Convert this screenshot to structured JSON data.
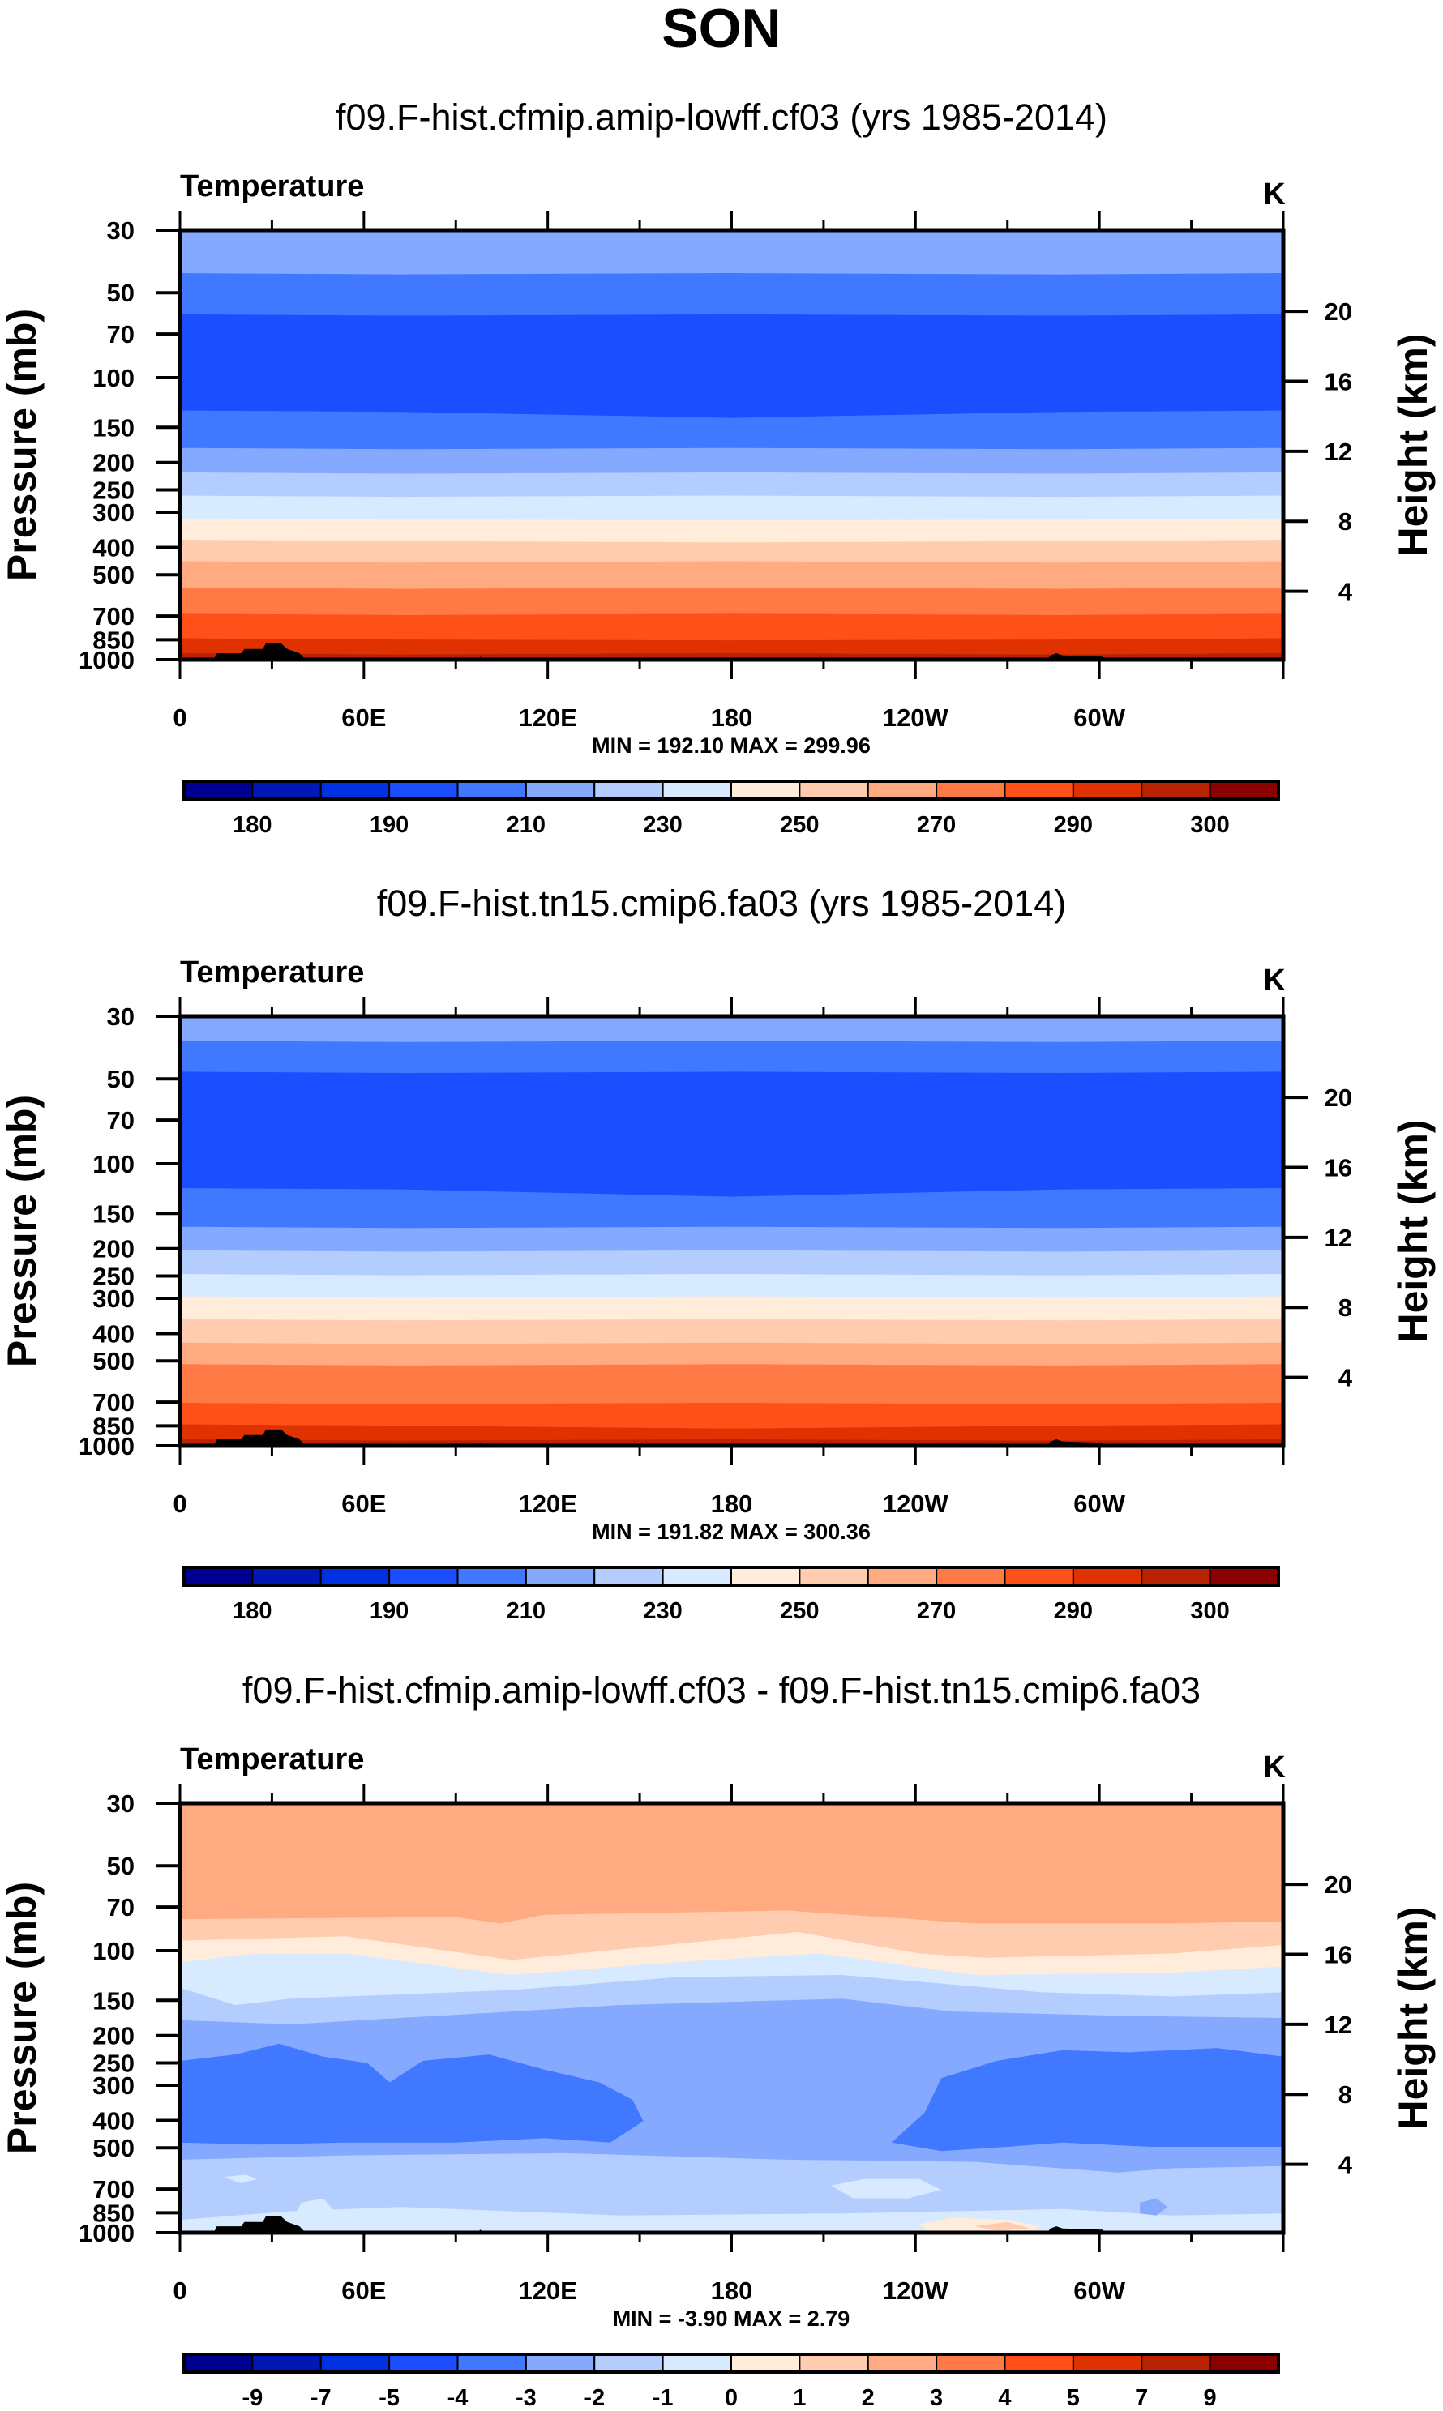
{
  "title": "SON",
  "chart_data": {
    "type": "heatmap",
    "subtype": "filled-contour cross-section",
    "title": "SON",
    "xlabel": "",
    "ylabel_left": "Pressure (mb)",
    "ylabel_right": "Height (km)",
    "x_ticks": [
      "0",
      "60E",
      "120E",
      "180",
      "120W",
      "60W"
    ],
    "x_tick_values_deg": [
      0,
      60,
      120,
      180,
      240,
      300
    ],
    "xlim_deg": [
      0,
      360
    ],
    "y_ticks_left": [
      "30",
      "50",
      "70",
      "100",
      "150",
      "200",
      "250",
      "300",
      "400",
      "500",
      "700",
      "850",
      "1000"
    ],
    "y_tick_values_mb": [
      30,
      50,
      70,
      100,
      150,
      200,
      250,
      300,
      400,
      500,
      700,
      850,
      1000
    ],
    "ylim_mb": [
      1000,
      30
    ],
    "y_scale": "log",
    "y_ticks_right": [
      "20",
      "16",
      "12",
      "8",
      "4"
    ],
    "y_tick_values_km": [
      20,
      16,
      12,
      8,
      4
    ],
    "palette": [
      "#000090",
      "#0019B4",
      "#0031E0",
      "#1A4EFF",
      "#4079FF",
      "#85A9FF",
      "#B4CDFF",
      "#D8EAFF",
      "#FFECDA",
      "#FFCCB0",
      "#FFAA80",
      "#FF7A45",
      "#FF501A",
      "#E03200",
      "#B92200",
      "#8B0000"
    ],
    "panels": [
      {
        "subtitle": "f09.F-hist.cfmip.amip-lowff.cf03 (yrs 1985-2014)",
        "variable": "Temperature",
        "units": "K",
        "min_max": "MIN = 192.10   MAX = 299.96",
        "min": 192.1,
        "max": 299.96,
        "colorbar_labels": [
          "180",
          "190",
          "210",
          "230",
          "250",
          "270",
          "290",
          "300"
        ],
        "colorbar_label_slots": [
          1,
          3,
          5,
          7,
          9,
          11,
          13,
          15
        ]
      },
      {
        "subtitle": "f09.F-hist.tn15.cmip6.fa03 (yrs 1985-2014)",
        "variable": "Temperature",
        "units": "K",
        "min_max": "MIN = 191.82   MAX = 300.36",
        "min": 191.82,
        "max": 300.36,
        "colorbar_labels": [
          "180",
          "190",
          "210",
          "230",
          "250",
          "270",
          "290",
          "300"
        ],
        "colorbar_label_slots": [
          1,
          3,
          5,
          7,
          9,
          11,
          13,
          15
        ]
      },
      {
        "subtitle": "f09.F-hist.cfmip.amip-lowff.cf03 - f09.F-hist.tn15.cmip6.fa03",
        "variable": "Temperature",
        "units": "K",
        "min_max": "MIN =  -3.90   MAX =   2.79",
        "min": -3.9,
        "max": 2.79,
        "colorbar_labels": [
          "-9",
          "-7",
          "-5",
          "-4",
          "-3",
          "-2",
          "-1",
          "0",
          "1",
          "2",
          "3",
          "4",
          "5",
          "7",
          "9"
        ],
        "colorbar_label_slots": [
          1,
          2,
          3,
          4,
          5,
          6,
          7,
          8,
          9,
          10,
          11,
          12,
          13,
          14,
          15
        ]
      }
    ]
  }
}
